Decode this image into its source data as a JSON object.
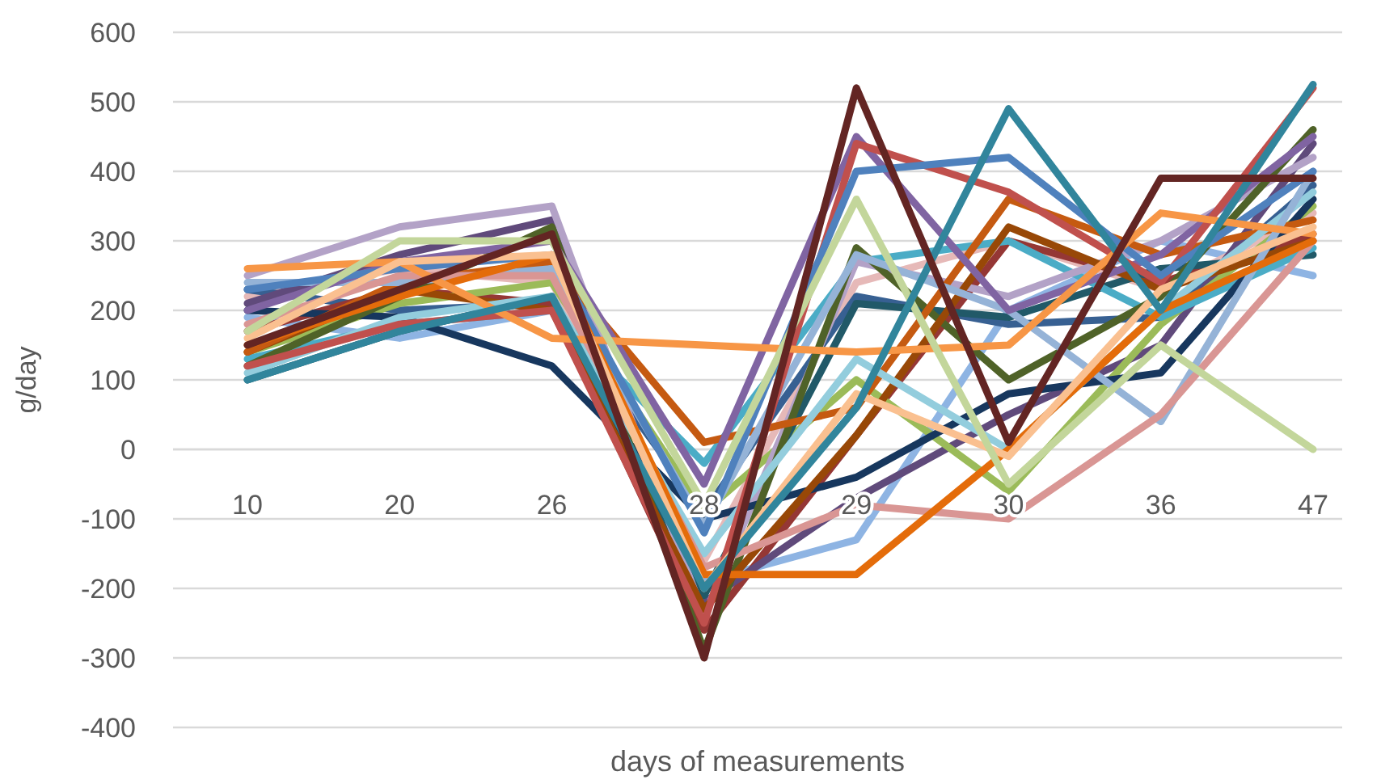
{
  "chart_data": {
    "type": "line",
    "xlabel": "days of measurements",
    "ylabel": "g/day",
    "categories": [
      "10",
      "20",
      "26",
      "28",
      "29",
      "30",
      "36",
      "47"
    ],
    "ylim": [
      -400,
      600
    ],
    "yticks": [
      -400,
      -300,
      -200,
      -100,
      0,
      100,
      200,
      300,
      400,
      500,
      600
    ],
    "grid": "y",
    "marker": "none",
    "line_style": "solid",
    "series": [
      {
        "color": "#8eb4e3",
        "values": [
          190,
          160,
          200,
          -190,
          -130,
          200,
          300,
          250
        ]
      },
      {
        "color": "#e6b9b8",
        "values": [
          220,
          260,
          240,
          -160,
          240,
          300,
          230,
          340
        ]
      },
      {
        "color": "#376092",
        "values": [
          230,
          200,
          210,
          -90,
          220,
          180,
          190,
          380
        ]
      },
      {
        "color": "#953735",
        "values": [
          170,
          230,
          210,
          -260,
          20,
          300,
          240,
          310
        ]
      },
      {
        "color": "#604a7b",
        "values": [
          210,
          280,
          330,
          -220,
          -70,
          50,
          150,
          440
        ]
      },
      {
        "color": "#9bbb59",
        "values": [
          140,
          210,
          240,
          -90,
          100,
          -60,
          180,
          350
        ]
      },
      {
        "color": "#215968",
        "values": [
          100,
          170,
          220,
          -210,
          210,
          190,
          260,
          280
        ]
      },
      {
        "color": "#4bacc6",
        "values": [
          130,
          180,
          200,
          -20,
          270,
          300,
          190,
          290
        ]
      },
      {
        "color": "#b3a2c7",
        "values": [
          250,
          320,
          350,
          -240,
          270,
          220,
          300,
          420
        ]
      },
      {
        "color": "#17375e",
        "values": [
          200,
          190,
          120,
          -100,
          -40,
          80,
          110,
          360
        ]
      },
      {
        "color": "#4f6228",
        "values": [
          120,
          220,
          320,
          -290,
          290,
          100,
          220,
          460
        ]
      },
      {
        "color": "#984807",
        "values": [
          140,
          230,
          200,
          -230,
          20,
          320,
          230,
          300
        ]
      },
      {
        "color": "#c55a11",
        "values": [
          140,
          240,
          270,
          10,
          60,
          360,
          280,
          330
        ]
      },
      {
        "color": "#93cddd",
        "values": [
          110,
          190,
          220,
          -150,
          130,
          0,
          200,
          370
        ]
      },
      {
        "color": "#95b3d7",
        "values": [
          240,
          240,
          260,
          -110,
          280,
          200,
          40,
          400
        ]
      },
      {
        "color": "#d99694",
        "values": [
          180,
          250,
          250,
          -170,
          -80,
          -100,
          50,
          300
        ]
      },
      {
        "color": "#8064a2",
        "values": [
          200,
          270,
          300,
          -50,
          450,
          200,
          280,
          450
        ]
      },
      {
        "color": "#c0504d",
        "values": [
          120,
          180,
          200,
          -250,
          440,
          370,
          240,
          520
        ]
      },
      {
        "color": "#4f81bd",
        "values": [
          230,
          260,
          280,
          -120,
          400,
          420,
          250,
          400
        ]
      },
      {
        "color": "#e46c0a",
        "values": [
          150,
          220,
          280,
          -180,
          -180,
          0,
          200,
          300
        ]
      },
      {
        "color": "#f79646",
        "values": [
          260,
          270,
          160,
          150,
          140,
          150,
          340,
          310
        ]
      },
      {
        "color": "#fac090",
        "values": [
          160,
          270,
          280,
          -200,
          80,
          -10,
          230,
          320
        ]
      },
      {
        "color": "#c3d69b",
        "values": [
          170,
          300,
          300,
          -80,
          360,
          -50,
          150,
          0
        ]
      },
      {
        "color": "#31859c",
        "values": [
          100,
          170,
          220,
          -200,
          60,
          490,
          200,
          525
        ]
      },
      {
        "color": "#632523",
        "values": [
          150,
          230,
          310,
          -300,
          520,
          10,
          390,
          390
        ]
      }
    ]
  }
}
